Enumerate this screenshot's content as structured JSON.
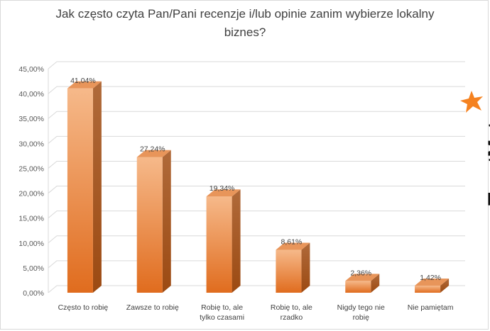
{
  "chart_data": {
    "type": "bar",
    "title_lines": [
      "Jak często czyta Pan/Pani recenzje i/lub opinie zanim wybierze lokalny",
      "biznes?"
    ],
    "categories": [
      [
        "Często to robię"
      ],
      [
        "Zawsze to robię"
      ],
      [
        "Robię to, ale",
        "tylko czasami"
      ],
      [
        "Robię to, ale",
        "rzadko"
      ],
      [
        "Nigdy tego nie",
        "robię"
      ],
      [
        "Nie pamiętam"
      ]
    ],
    "values": [
      41.04,
      27.24,
      19.34,
      8.61,
      2.36,
      1.42
    ],
    "data_labels": [
      "41,04%",
      "27,24%",
      "19,34%",
      "8,61%",
      "2,36%",
      "1,42%"
    ],
    "y_ticks": [
      "0,00%",
      "5,00%",
      "10,00%",
      "15,00%",
      "20,00%",
      "25,00%",
      "30,00%",
      "35,00%",
      "40,00%",
      "45,00%"
    ],
    "ylim": [
      0,
      45
    ],
    "grid": true,
    "colors": {
      "bar_top": "#f6b98a",
      "bar_bottom": "#e06c1e",
      "bar_side": "#9c4a12",
      "bar_cap": "#e8955a",
      "grid": "#d9d9d9"
    }
  },
  "logo": {
    "text": "TrustMate",
    "star_color": "#f58220"
  }
}
